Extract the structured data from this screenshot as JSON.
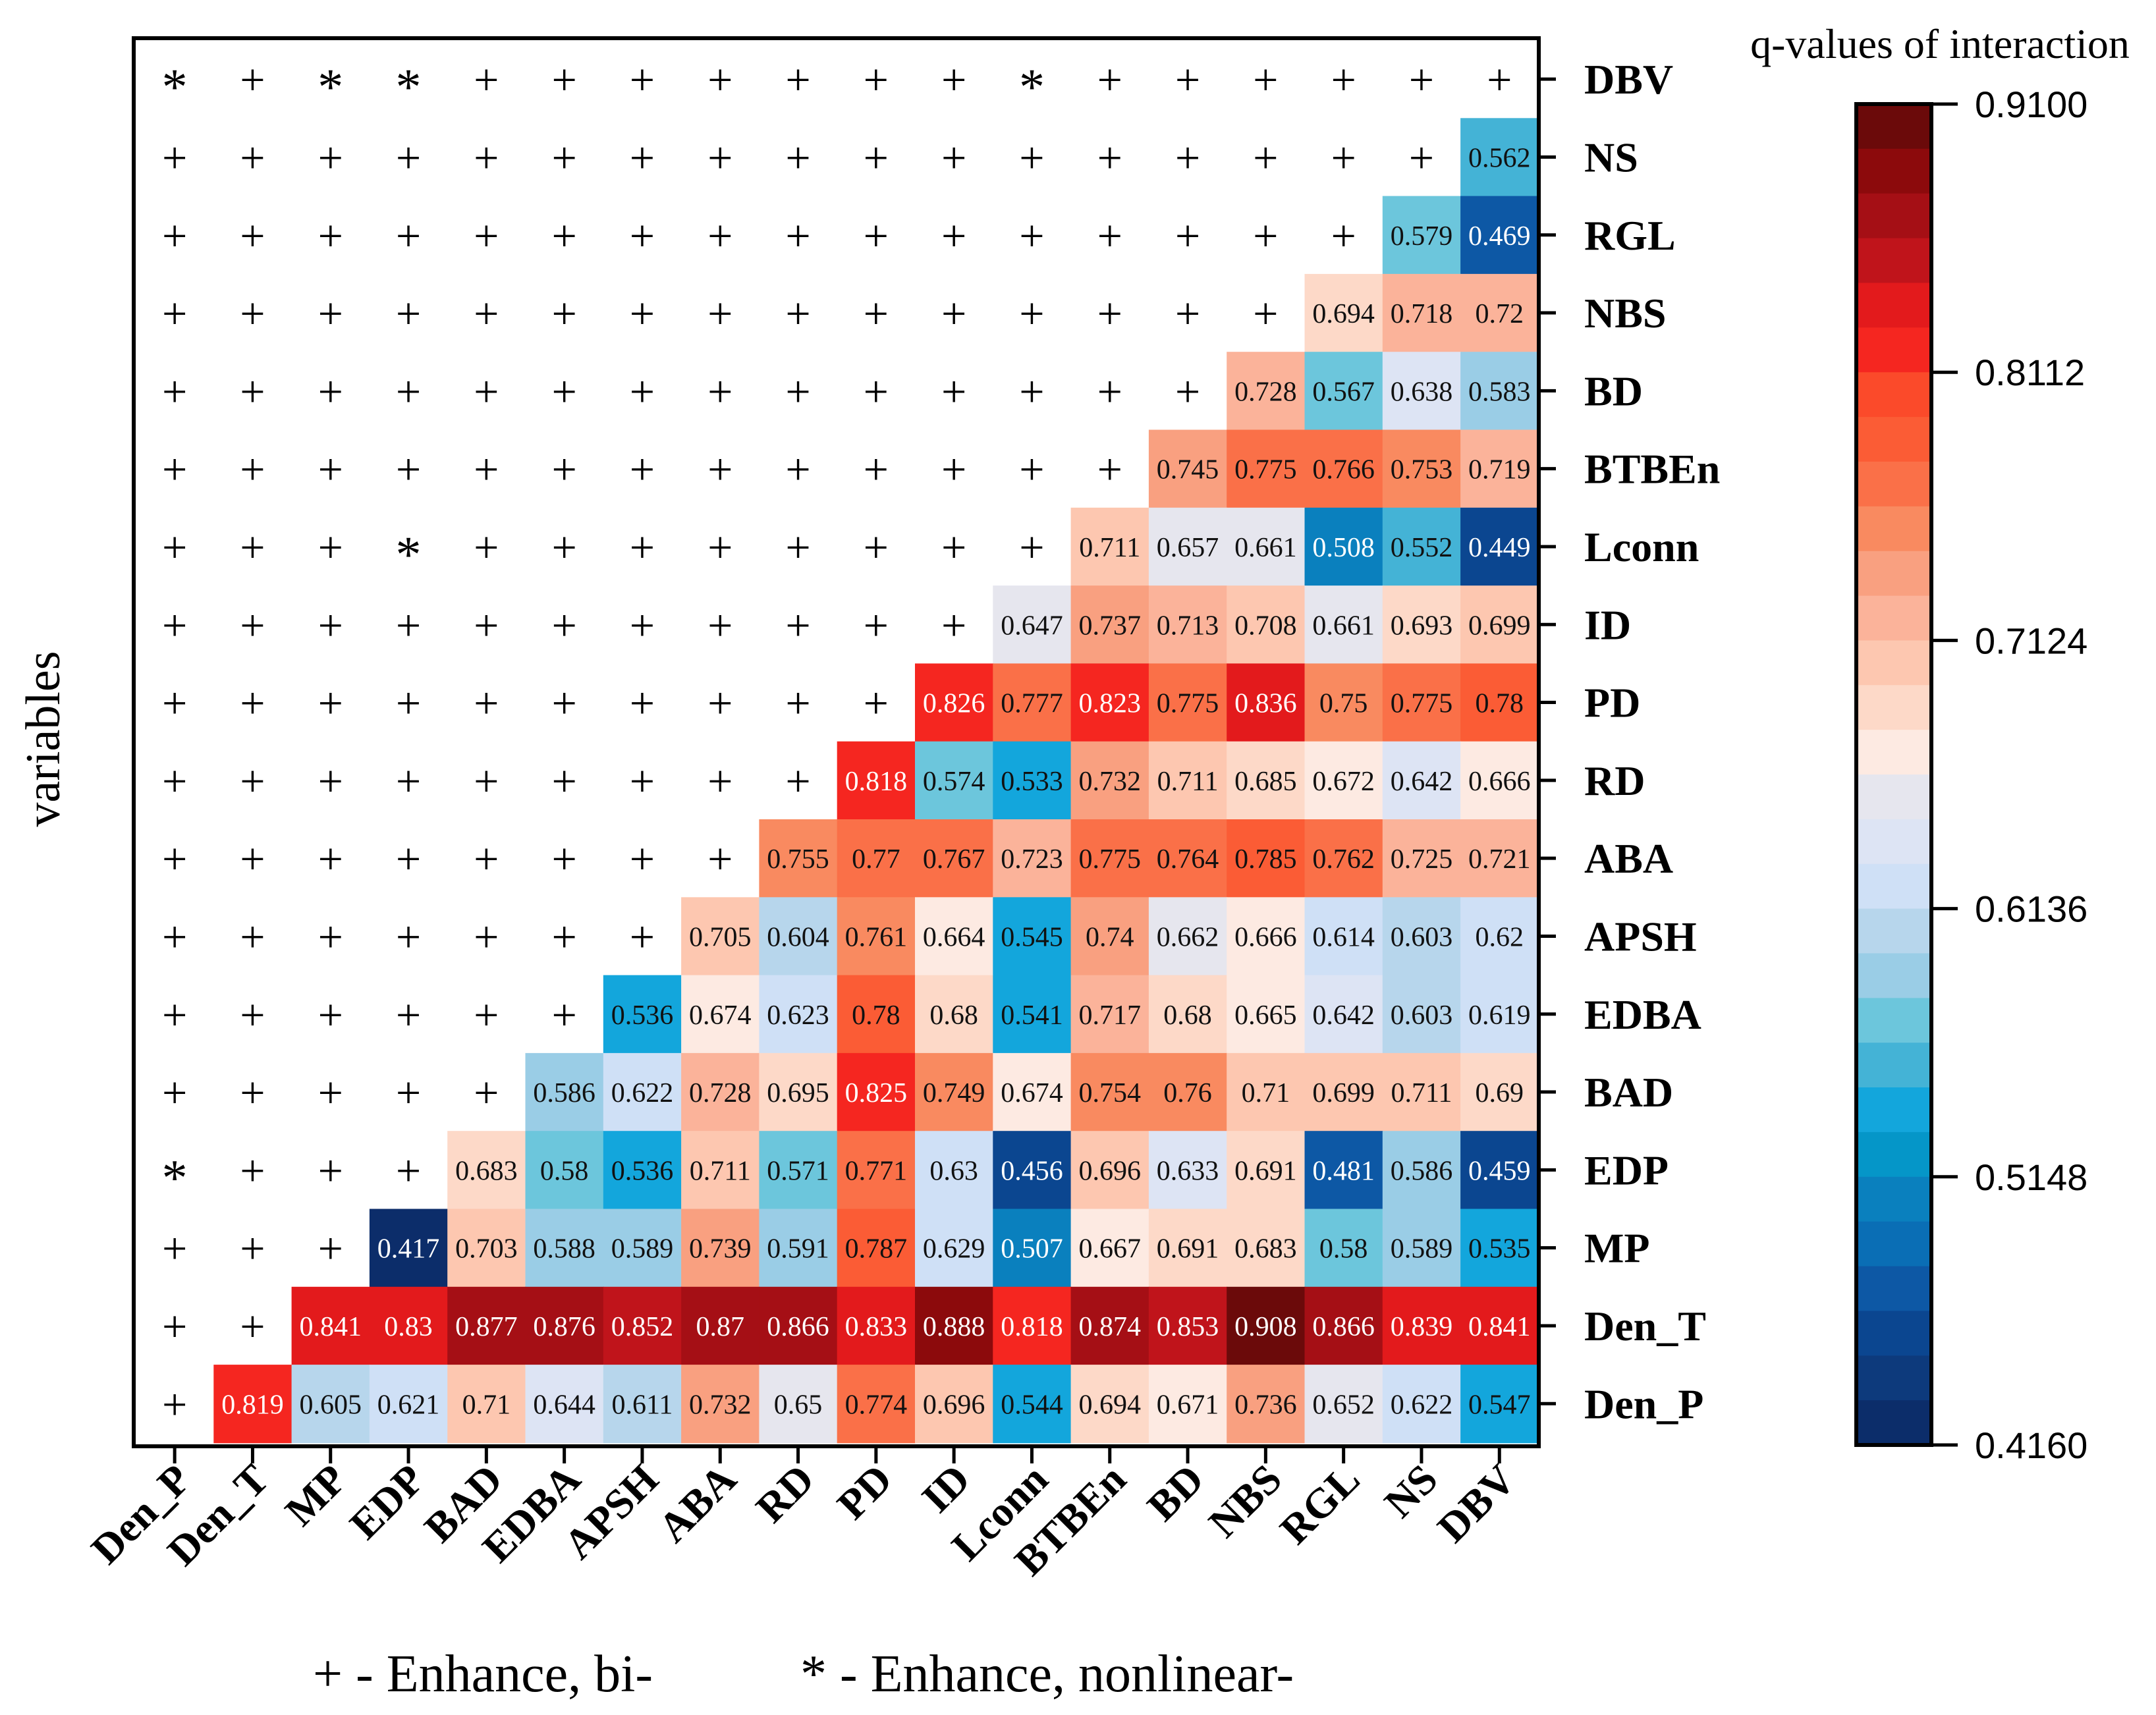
{
  "chart_data": {
    "type": "heatmap",
    "title": "q-values of interaction",
    "ylabel": "variables",
    "columns": [
      "Den_P",
      "Den_T",
      "MP",
      "EDP",
      "BAD",
      "EDBA",
      "APSH",
      "ABA",
      "RD",
      "PD",
      "ID",
      "Lconn",
      "BTBEn",
      "BD",
      "NBS",
      "RGL",
      "NS",
      "DBV"
    ],
    "rows": [
      "DBV",
      "NS",
      "RGL",
      "NBS",
      "BD",
      "BTBEn",
      "Lconn",
      "ID",
      "PD",
      "RD",
      "ABA",
      "APSH",
      "EDBA",
      "BAD",
      "EDP",
      "MP",
      "Den_T",
      "Den_P"
    ],
    "matrix": [
      [
        "*",
        "+",
        "*",
        "*",
        "+",
        "+",
        "+",
        "+",
        "+",
        "+",
        "+",
        "*",
        "+",
        "+",
        "+",
        "+",
        "+",
        "+"
      ],
      [
        "+",
        "+",
        "+",
        "+",
        "+",
        "+",
        "+",
        "+",
        "+",
        "+",
        "+",
        "+",
        "+",
        "+",
        "+",
        "+",
        "+",
        0.562
      ],
      [
        "+",
        "+",
        "+",
        "+",
        "+",
        "+",
        "+",
        "+",
        "+",
        "+",
        "+",
        "+",
        "+",
        "+",
        "+",
        "+",
        0.579,
        0.469
      ],
      [
        "+",
        "+",
        "+",
        "+",
        "+",
        "+",
        "+",
        "+",
        "+",
        "+",
        "+",
        "+",
        "+",
        "+",
        "+",
        0.694,
        0.718,
        0.72
      ],
      [
        "+",
        "+",
        "+",
        "+",
        "+",
        "+",
        "+",
        "+",
        "+",
        "+",
        "+",
        "+",
        "+",
        "+",
        0.728,
        0.567,
        0.638,
        0.583
      ],
      [
        "+",
        "+",
        "+",
        "+",
        "+",
        "+",
        "+",
        "+",
        "+",
        "+",
        "+",
        "+",
        "+",
        0.745,
        0.775,
        0.766,
        0.753,
        0.719
      ],
      [
        "+",
        "+",
        "+",
        "*",
        "+",
        "+",
        "+",
        "+",
        "+",
        "+",
        "+",
        "+",
        0.711,
        0.657,
        0.661,
        0.508,
        0.552,
        0.449
      ],
      [
        "+",
        "+",
        "+",
        "+",
        "+",
        "+",
        "+",
        "+",
        "+",
        "+",
        "+",
        0.647,
        0.737,
        0.713,
        0.708,
        0.661,
        0.693,
        0.699
      ],
      [
        "+",
        "+",
        "+",
        "+",
        "+",
        "+",
        "+",
        "+",
        "+",
        "+",
        0.826,
        0.777,
        0.823,
        0.775,
        0.836,
        0.75,
        0.775,
        0.78
      ],
      [
        "+",
        "+",
        "+",
        "+",
        "+",
        "+",
        "+",
        "+",
        "+",
        0.818,
        0.574,
        0.533,
        0.732,
        0.711,
        0.685,
        0.672,
        0.642,
        0.666
      ],
      [
        "+",
        "+",
        "+",
        "+",
        "+",
        "+",
        "+",
        "+",
        0.755,
        0.77,
        0.767,
        0.723,
        0.775,
        0.764,
        0.785,
        0.762,
        0.725,
        0.721
      ],
      [
        "+",
        "+",
        "+",
        "+",
        "+",
        "+",
        "+",
        0.705,
        0.604,
        0.761,
        0.664,
        0.545,
        0.74,
        0.662,
        0.666,
        0.614,
        0.603,
        0.62
      ],
      [
        "+",
        "+",
        "+",
        "+",
        "+",
        "+",
        0.536,
        0.674,
        0.623,
        0.78,
        0.68,
        0.541,
        0.717,
        0.68,
        0.665,
        0.642,
        0.603,
        0.619
      ],
      [
        "+",
        "+",
        "+",
        "+",
        "+",
        0.586,
        0.622,
        0.728,
        0.695,
        0.825,
        0.749,
        0.674,
        0.754,
        0.76,
        0.71,
        0.699,
        0.711,
        0.69
      ],
      [
        "*",
        "+",
        "+",
        "+",
        0.683,
        0.58,
        0.536,
        0.711,
        0.571,
        0.771,
        0.63,
        0.456,
        0.696,
        0.633,
        0.691,
        0.481,
        0.586,
        0.459
      ],
      [
        "+",
        "+",
        "+",
        0.417,
        0.703,
        0.588,
        0.589,
        0.739,
        0.591,
        0.787,
        0.629,
        0.507,
        0.667,
        0.691,
        0.683,
        0.58,
        0.589,
        0.535
      ],
      [
        "+",
        "+",
        0.841,
        0.83,
        0.877,
        0.876,
        0.852,
        0.87,
        0.866,
        0.833,
        0.888,
        0.818,
        0.874,
        0.853,
        0.908,
        0.866,
        0.839,
        0.841
      ],
      [
        "+",
        0.819,
        0.605,
        0.621,
        0.71,
        0.644,
        0.611,
        0.732,
        0.65,
        0.774,
        0.696,
        0.544,
        0.694,
        0.671,
        0.736,
        0.652,
        0.622,
        0.547
      ]
    ],
    "colorbar": {
      "range": [
        0.416,
        0.91
      ],
      "tick_labels": [
        "0.9100",
        "0.8112",
        "0.7124",
        "0.6136",
        "0.5148",
        "0.4160"
      ],
      "colors": [
        "#6b0a0a",
        "#8c0a0c",
        "#a50f15",
        "#c0141b",
        "#e31a1c",
        "#f52620",
        "#fb4a2a",
        "#fb5c35",
        "#fa7048",
        "#f98a60",
        "#f9a080",
        "#fbb39a",
        "#fdc7b0",
        "#fdd9c8",
        "#fdeae2",
        "#e6e6ee",
        "#dde4f4",
        "#cfe0f6",
        "#b7d6ec",
        "#9acde6",
        "#6cc6dc",
        "#44b3d6",
        "#13a6dc",
        "#0596c8",
        "#0a80be",
        "#0a6eb5",
        "#0d58a5",
        "#0b4690",
        "#0d3a7c",
        "#0c2d6a"
      ]
    },
    "legend": {
      "plus": "+ - Enhance, bi-",
      "star": "* - Enhance, nonlinear-"
    }
  }
}
